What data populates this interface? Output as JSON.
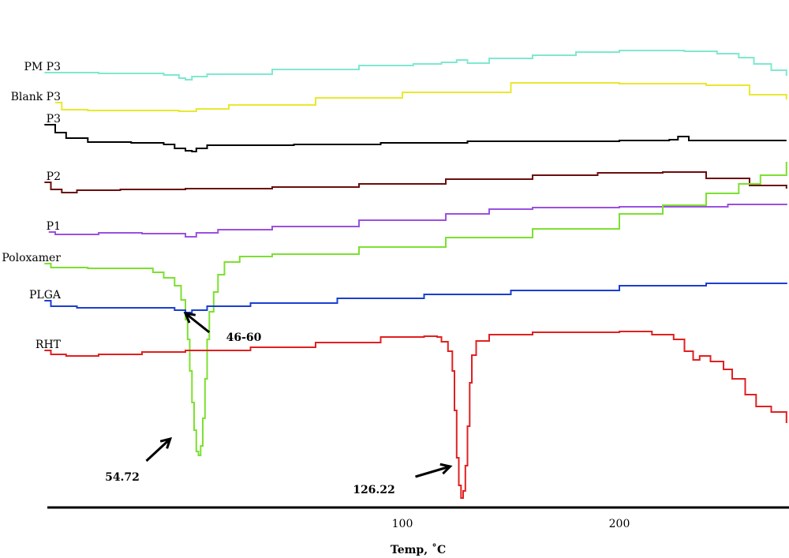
{
  "chart_data": {
    "type": "line",
    "title": "",
    "xlabel": "Temp, ˚C",
    "ylabel": "",
    "xlim": [
      -65,
      277
    ],
    "x_ticks": [
      {
        "value": 100,
        "label": "100"
      },
      {
        "value": 200,
        "label": "200"
      }
    ],
    "grid": false,
    "legend": "none",
    "series": [
      {
        "name": "PM P3",
        "color": "#7fe8d0",
        "points": [
          [
            -65,
            92
          ],
          [
            -40,
            93
          ],
          [
            -10,
            95
          ],
          [
            -3,
            99
          ],
          [
            0,
            101
          ],
          [
            3,
            97
          ],
          [
            10,
            94
          ],
          [
            40,
            88
          ],
          [
            80,
            83
          ],
          [
            105,
            81
          ],
          [
            118,
            79
          ],
          [
            125,
            76
          ],
          [
            130,
            80
          ],
          [
            140,
            74
          ],
          [
            160,
            70
          ],
          [
            180,
            66
          ],
          [
            200,
            64
          ],
          [
            230,
            65
          ],
          [
            245,
            68
          ],
          [
            255,
            73
          ],
          [
            262,
            81
          ],
          [
            270,
            89
          ],
          [
            277,
            96
          ]
        ]
      },
      {
        "name": "Blank P3",
        "color": "#e8e830",
        "points": [
          [
            -60,
            130
          ],
          [
            -57,
            139
          ],
          [
            -45,
            140
          ],
          [
            -20,
            140
          ],
          [
            -3,
            141
          ],
          [
            5,
            138
          ],
          [
            20,
            133
          ],
          [
            60,
            124
          ],
          [
            100,
            117
          ],
          [
            135,
            117
          ],
          [
            150,
            105
          ],
          [
            200,
            106
          ],
          [
            240,
            108
          ],
          [
            260,
            120
          ],
          [
            277,
            126
          ]
        ]
      },
      {
        "name": "P3",
        "color": "#000000",
        "points": [
          [
            -65,
            158
          ],
          [
            -60,
            168
          ],
          [
            -55,
            175
          ],
          [
            -45,
            180
          ],
          [
            -25,
            181
          ],
          [
            -10,
            183
          ],
          [
            -5,
            188
          ],
          [
            0,
            191
          ],
          [
            3,
            192
          ],
          [
            5,
            188
          ],
          [
            10,
            184
          ],
          [
            50,
            183
          ],
          [
            90,
            181
          ],
          [
            130,
            179
          ],
          [
            200,
            178
          ],
          [
            223,
            177
          ],
          [
            227,
            173
          ],
          [
            232,
            178
          ],
          [
            277,
            178
          ]
        ]
      },
      {
        "name": "P2",
        "color": "#6b0d0d",
        "points": [
          [
            -65,
            231
          ],
          [
            -62,
            240
          ],
          [
            -57,
            244
          ],
          [
            -50,
            241
          ],
          [
            -30,
            240
          ],
          [
            0,
            239
          ],
          [
            40,
            237
          ],
          [
            80,
            233
          ],
          [
            120,
            227
          ],
          [
            160,
            222
          ],
          [
            190,
            219
          ],
          [
            220,
            218
          ],
          [
            240,
            226
          ],
          [
            260,
            235
          ],
          [
            277,
            239
          ]
        ]
      },
      {
        "name": "P1",
        "color": "#9b50e0",
        "points": [
          [
            -63,
            294
          ],
          [
            -60,
            297
          ],
          [
            -40,
            295
          ],
          [
            -20,
            296
          ],
          [
            -5,
            296
          ],
          [
            0,
            300
          ],
          [
            5,
            295
          ],
          [
            15,
            291
          ],
          [
            40,
            287
          ],
          [
            80,
            279
          ],
          [
            120,
            271
          ],
          [
            140,
            265
          ],
          [
            160,
            263
          ],
          [
            200,
            262
          ],
          [
            225,
            262
          ],
          [
            250,
            259
          ],
          [
            277,
            260
          ]
        ]
      },
      {
        "name": "Poloxamer",
        "color": "#7ce030",
        "points": [
          [
            -65,
            334
          ],
          [
            -62,
            339
          ],
          [
            -45,
            340
          ],
          [
            -25,
            340
          ],
          [
            -15,
            345
          ],
          [
            -10,
            352
          ],
          [
            -5,
            362
          ],
          [
            -2,
            380
          ],
          [
            0,
            405
          ],
          [
            1,
            430
          ],
          [
            2,
            470
          ],
          [
            3,
            510
          ],
          [
            4,
            545
          ],
          [
            5,
            572
          ],
          [
            6,
            577
          ],
          [
            7,
            565
          ],
          [
            8,
            530
          ],
          [
            9,
            480
          ],
          [
            10,
            430
          ],
          [
            11,
            395
          ],
          [
            13,
            370
          ],
          [
            15,
            348
          ],
          [
            18,
            332
          ],
          [
            25,
            325
          ],
          [
            40,
            322
          ],
          [
            80,
            313
          ],
          [
            120,
            301
          ],
          [
            160,
            290
          ],
          [
            200,
            271
          ],
          [
            220,
            260
          ],
          [
            240,
            245
          ],
          [
            255,
            233
          ],
          [
            265,
            222
          ],
          [
            277,
            205
          ]
        ]
      },
      {
        "name": "PLGA",
        "color": "#1a3fd0",
        "points": [
          [
            -65,
            381
          ],
          [
            -62,
            388
          ],
          [
            -50,
            390
          ],
          [
            -20,
            390
          ],
          [
            -5,
            393
          ],
          [
            0,
            396
          ],
          [
            3,
            393
          ],
          [
            10,
            388
          ],
          [
            30,
            384
          ],
          [
            70,
            378
          ],
          [
            110,
            373
          ],
          [
            150,
            368
          ],
          [
            200,
            362
          ],
          [
            240,
            359
          ],
          [
            277,
            358
          ]
        ]
      },
      {
        "name": "RHT",
        "color": "#e02020",
        "points": [
          [
            -65,
            444
          ],
          [
            -62,
            449
          ],
          [
            -55,
            451
          ],
          [
            -40,
            449
          ],
          [
            -20,
            446
          ],
          [
            0,
            444
          ],
          [
            30,
            440
          ],
          [
            60,
            434
          ],
          [
            90,
            427
          ],
          [
            110,
            426
          ],
          [
            116,
            427
          ],
          [
            118,
            433
          ],
          [
            121,
            445
          ],
          [
            123,
            470
          ],
          [
            124,
            520
          ],
          [
            125,
            580
          ],
          [
            126,
            615
          ],
          [
            127,
            631
          ],
          [
            128,
            622
          ],
          [
            129,
            590
          ],
          [
            130,
            540
          ],
          [
            131,
            485
          ],
          [
            132,
            450
          ],
          [
            134,
            432
          ],
          [
            140,
            424
          ],
          [
            160,
            421
          ],
          [
            200,
            420
          ],
          [
            215,
            424
          ],
          [
            225,
            430
          ],
          [
            230,
            445
          ],
          [
            234,
            456
          ],
          [
            237,
            451
          ],
          [
            242,
            458
          ],
          [
            248,
            468
          ],
          [
            252,
            480
          ],
          [
            258,
            500
          ],
          [
            263,
            515
          ],
          [
            270,
            522
          ],
          [
            277,
            536
          ]
        ]
      }
    ],
    "annotations": [
      {
        "text": "54.72",
        "arrow_from": [
          -18,
          584
        ],
        "arrow_to": [
          -7,
          556
        ]
      },
      {
        "text": "126.22",
        "arrow_from": [
          106,
          604
        ],
        "arrow_to": [
          122,
          591
        ]
      },
      {
        "text": "46-60",
        "arrow_from": [
          11,
          421
        ],
        "arrow_to": [
          0,
          397
        ]
      }
    ]
  }
}
